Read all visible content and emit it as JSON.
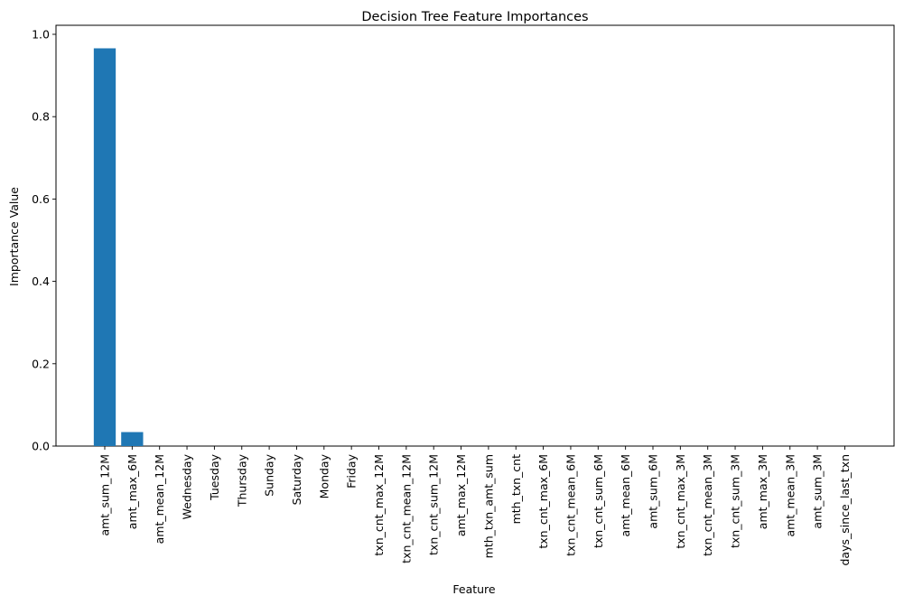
{
  "chart_data": {
    "type": "bar",
    "title": "Decision Tree Feature Importances",
    "xlabel": "Feature",
    "ylabel": "Importance Value",
    "ylim": [
      0,
      1.0
    ],
    "yticks": [
      "0.0",
      "0.2",
      "0.4",
      "0.6",
      "0.8",
      "1.0"
    ],
    "ytick_values": [
      0,
      0.2,
      0.4,
      0.6,
      0.8,
      1.0
    ],
    "grid": false,
    "legend": "none",
    "bar_color": "#1f77b4",
    "categories": [
      "amt_sum_12M",
      "amt_max_6M",
      "amt_mean_12M",
      "Wednesday",
      "Tuesday",
      "Thursday",
      "Sunday",
      "Saturday",
      "Monday",
      "Friday",
      "txn_cnt_max_12M",
      "txn_cnt_mean_12M",
      "txn_cnt_sum_12M",
      "amt_max_12M",
      "mth_txn_amt_sum",
      "mth_txn_cnt",
      "txn_cnt_max_6M",
      "txn_cnt_mean_6M",
      "txn_cnt_sum_6M",
      "amt_mean_6M",
      "amt_sum_6M",
      "txn_cnt_max_3M",
      "txn_cnt_mean_3M",
      "txn_cnt_sum_3M",
      "amt_max_3M",
      "amt_mean_3M",
      "amt_sum_3M",
      "days_since_last_txn"
    ],
    "values": [
      0.966,
      0.034,
      0,
      0,
      0,
      0,
      0,
      0,
      0,
      0,
      0,
      0,
      0,
      0,
      0,
      0,
      0,
      0,
      0,
      0,
      0,
      0,
      0,
      0,
      0,
      0,
      0,
      0
    ]
  }
}
